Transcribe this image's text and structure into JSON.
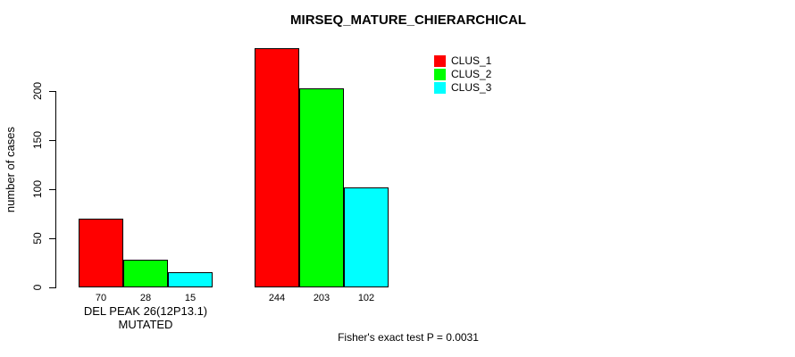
{
  "chart_data": {
    "type": "bar",
    "title": "MIRSEQ_MATURE_CHIERARCHICAL",
    "ylabel": "number of cases",
    "xlabel": "DEL PEAK 26(12P13.1) MUTATED",
    "footer": "Fisher's exact test P = 0.0031",
    "yticks": [
      0,
      50,
      100,
      150,
      200
    ],
    "ylim": [
      0,
      250
    ],
    "grid": false,
    "legend_position": "top-right",
    "categories": [
      "DEL PEAK 26(12P13.1) MUTATED",
      ""
    ],
    "series": [
      {
        "name": "CLUS_1",
        "color": "#ff0000",
        "values": [
          70,
          244
        ]
      },
      {
        "name": "CLUS_2",
        "color": "#00ff00",
        "values": [
          28,
          203
        ]
      },
      {
        "name": "CLUS_3",
        "color": "#00ffff",
        "values": [
          15,
          102
        ]
      }
    ],
    "bar_labels": [
      [
        70,
        28,
        15
      ],
      [
        244,
        203,
        102
      ]
    ]
  }
}
